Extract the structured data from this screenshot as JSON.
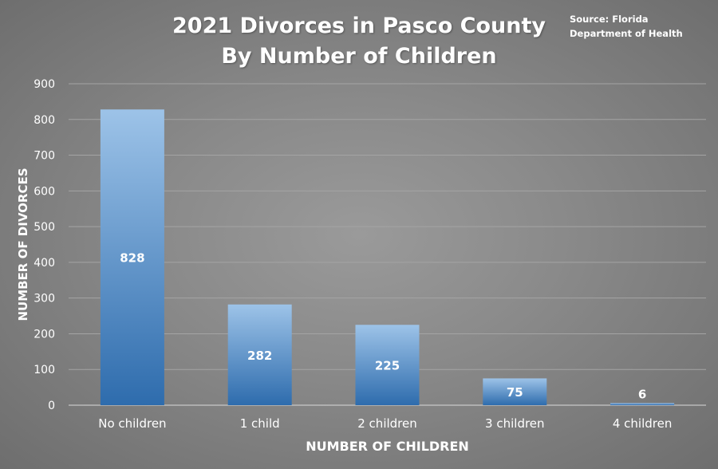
{
  "chart_data": {
    "type": "bar",
    "title_lines": [
      "2021 Divorces in Pasco County",
      "By Number of Children"
    ],
    "source_lines": [
      "Source: Florida",
      "Department of Health"
    ],
    "xlabel": "NUMBER OF CHILDREN",
    "ylabel": "NUMBER OF DIVORCES",
    "categories": [
      "No children",
      "1 child",
      "2 children",
      "3 children",
      "4 children"
    ],
    "values": [
      828,
      282,
      225,
      75,
      6
    ],
    "ylim": [
      0,
      900
    ],
    "yticks": [
      0,
      100,
      200,
      300,
      400,
      500,
      600,
      700,
      800,
      900
    ],
    "grid": true,
    "legend": "none",
    "colors": {
      "bar_top": "#9dc3e8",
      "bar_bottom": "#2e6cad",
      "gridline": "#a4a4a4",
      "text": "#ffffff"
    }
  }
}
